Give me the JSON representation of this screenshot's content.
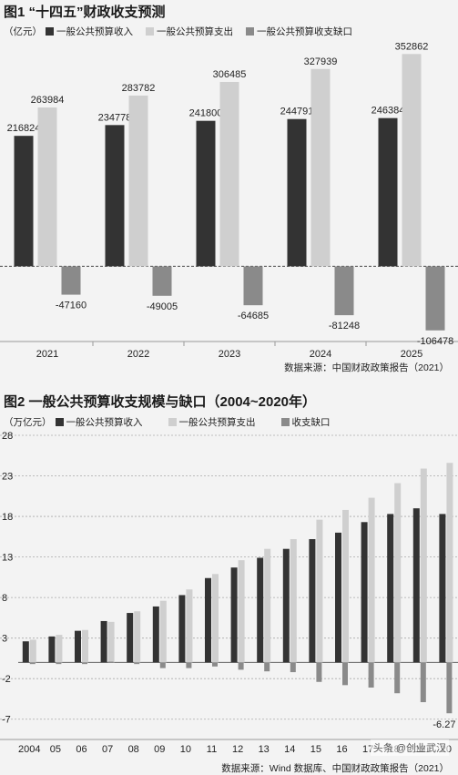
{
  "colors": {
    "income": "#333333",
    "expenditure": "#cfcfcf",
    "deficit": "#8a8a8a",
    "background": "#f3f3f3"
  },
  "chart1": {
    "title": "图1 “十四五”财政收支预测",
    "unit": "（亿元）",
    "legend": [
      "一般公共预算收入",
      "一般公共预算支出",
      "一般公共预算收支缺口"
    ],
    "source": "数据来源：中国财政政策报告（2021）"
  },
  "chart2": {
    "title": "图2 一般公共预算收支规模与缺口（2004~2020年）",
    "unit": "（万亿元）",
    "legend": [
      "一般公共预算收入",
      "一般公共预算支出",
      "收支缺口"
    ],
    "source": "数据来源：Wind 数据库、中国财政政策报告（2021）"
  },
  "watermark": "头条 @创业武汉",
  "chart_data": [
    {
      "type": "bar",
      "title": "图1 “十四五”财政收支预测",
      "categories": [
        "2021",
        "2022",
        "2023",
        "2024",
        "2025"
      ],
      "series": [
        {
          "name": "一般公共预算收入",
          "values": [
            216824,
            234778,
            241800,
            244791,
            246384
          ]
        },
        {
          "name": "一般公共预算支出",
          "values": [
            263984,
            283782,
            306485,
            327939,
            352862
          ]
        },
        {
          "name": "一般公共预算收支缺口",
          "values": [
            -47160,
            -49005,
            -64685,
            -81248,
            -106478
          ]
        }
      ],
      "data_labels": {
        "income": [
          "216824",
          "234778",
          "241800",
          "244791",
          "246384"
        ],
        "expenditure": [
          "263984",
          "283782",
          "306485",
          "327939",
          "352862"
        ],
        "deficit": [
          "-47160",
          "-49005",
          "-64685",
          "-81248",
          "-106478"
        ]
      },
      "ylim": [
        -125000,
        370000
      ],
      "grid": false,
      "legend_position": "top"
    },
    {
      "type": "bar",
      "title": "图2 一般公共预算收支规模与缺口（2004~2020年）",
      "categories": [
        "2004",
        "05",
        "06",
        "07",
        "08",
        "09",
        "10",
        "11",
        "12",
        "13",
        "14",
        "15",
        "16",
        "17",
        "18",
        "19",
        "20"
      ],
      "series": [
        {
          "name": "一般公共预算收入",
          "values": [
            2.6,
            3.2,
            3.9,
            5.1,
            6.1,
            6.9,
            8.3,
            10.4,
            11.7,
            12.9,
            14.0,
            15.2,
            16.0,
            17.3,
            18.3,
            19.0,
            18.3
          ]
        },
        {
          "name": "一般公共预算支出",
          "values": [
            2.8,
            3.4,
            4.0,
            5.0,
            6.3,
            7.6,
            9.0,
            10.9,
            12.6,
            14.0,
            15.2,
            17.6,
            18.8,
            20.3,
            22.1,
            23.9,
            24.6
          ]
        },
        {
          "name": "收支缺口",
          "values": [
            -0.2,
            -0.2,
            -0.2,
            0.1,
            -0.2,
            -0.7,
            -0.7,
            -0.5,
            -0.9,
            -1.1,
            -1.2,
            -2.4,
            -2.8,
            -3.1,
            -3.8,
            -4.9,
            -6.27
          ]
        }
      ],
      "data_labels": {
        "last_deficit": "-6.27"
      },
      "yticks": [
        "28",
        "23",
        "18",
        "13",
        "8",
        "3",
        "-2",
        "-7"
      ],
      "ylim": [
        -9.5,
        28
      ],
      "grid": true,
      "legend_position": "top"
    }
  ]
}
